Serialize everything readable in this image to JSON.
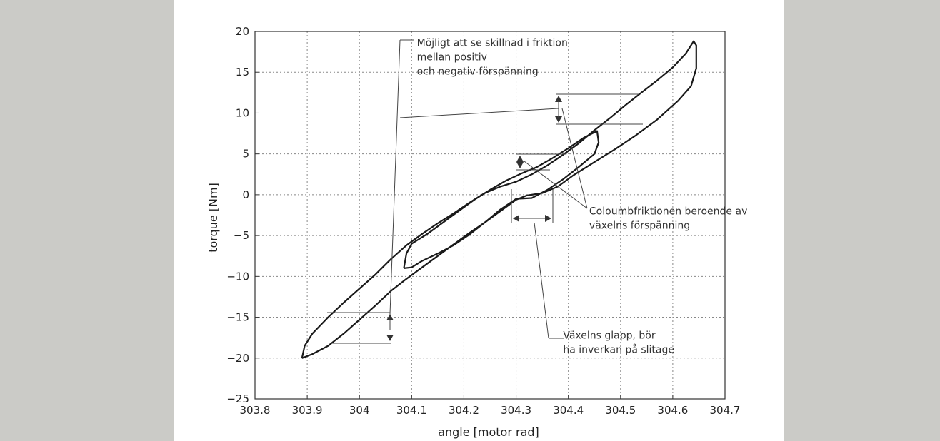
{
  "chart_data": {
    "type": "line",
    "title": "",
    "xlabel": "angle [motor rad]",
    "ylabel": "torque [Nm]",
    "xlim": [
      303.8,
      304.7
    ],
    "ylim": [
      -25,
      20
    ],
    "x_ticks": [
      "303.8",
      "303.9",
      "304",
      "304.1",
      "304.2",
      "304.3",
      "304.4",
      "304.5",
      "304.6",
      "304.7"
    ],
    "y_ticks": [
      "20",
      "15",
      "10",
      "5",
      "0",
      "−5",
      "−10",
      "−15",
      "−20",
      "−25"
    ],
    "grid": true,
    "series": [
      {
        "loop": "outer",
        "points": [
          [
            303.89,
            -20.0
          ],
          [
            303.895,
            -18.5
          ],
          [
            303.91,
            -17.0
          ],
          [
            303.94,
            -15.0
          ],
          [
            303.97,
            -13.2
          ],
          [
            304.0,
            -11.5
          ],
          [
            304.03,
            -9.8
          ],
          [
            304.06,
            -7.9
          ],
          [
            304.09,
            -6.2
          ],
          [
            304.12,
            -4.8
          ],
          [
            304.15,
            -3.5
          ],
          [
            304.18,
            -2.3
          ],
          [
            304.21,
            -1.0
          ],
          [
            304.24,
            0.2
          ],
          [
            304.27,
            1.0
          ],
          [
            304.3,
            1.6
          ],
          [
            304.33,
            2.5
          ],
          [
            304.36,
            3.6
          ],
          [
            304.39,
            4.9
          ],
          [
            304.42,
            6.3
          ],
          [
            304.45,
            7.9
          ],
          [
            304.48,
            9.4
          ],
          [
            304.51,
            11.0
          ],
          [
            304.54,
            12.5
          ],
          [
            304.57,
            14.0
          ],
          [
            304.6,
            15.6
          ],
          [
            304.625,
            17.3
          ],
          [
            304.64,
            18.8
          ],
          [
            304.645,
            18.3
          ],
          [
            304.645,
            15.5
          ],
          [
            304.635,
            13.3
          ],
          [
            304.61,
            11.5
          ],
          [
            304.57,
            9.2
          ],
          [
            304.53,
            7.3
          ],
          [
            304.49,
            5.6
          ],
          [
            304.45,
            4.0
          ],
          [
            304.41,
            2.4
          ],
          [
            304.38,
            1.0
          ],
          [
            304.35,
            0.2
          ],
          [
            304.32,
            -0.1
          ],
          [
            304.3,
            -0.6
          ],
          [
            304.27,
            -2.0
          ],
          [
            304.24,
            -3.4
          ],
          [
            304.21,
            -4.7
          ],
          [
            304.18,
            -6.1
          ],
          [
            304.15,
            -7.5
          ],
          [
            304.12,
            -8.9
          ],
          [
            304.09,
            -10.3
          ],
          [
            304.06,
            -11.8
          ],
          [
            304.03,
            -13.6
          ],
          [
            304.0,
            -15.3
          ],
          [
            303.97,
            -17.0
          ],
          [
            303.94,
            -18.5
          ],
          [
            303.91,
            -19.5
          ],
          [
            303.89,
            -20.0
          ]
        ]
      },
      {
        "loop": "inner",
        "points": [
          [
            304.085,
            -9.0
          ],
          [
            304.09,
            -7.2
          ],
          [
            304.1,
            -6.0
          ],
          [
            304.13,
            -4.8
          ],
          [
            304.16,
            -3.4
          ],
          [
            304.19,
            -2.0
          ],
          [
            304.22,
            -0.6
          ],
          [
            304.25,
            0.6
          ],
          [
            304.28,
            1.7
          ],
          [
            304.31,
            2.6
          ],
          [
            304.34,
            3.4
          ],
          [
            304.37,
            4.5
          ],
          [
            304.4,
            5.7
          ],
          [
            304.43,
            7.0
          ],
          [
            304.455,
            7.8
          ],
          [
            304.458,
            6.4
          ],
          [
            304.45,
            5.0
          ],
          [
            304.42,
            3.4
          ],
          [
            304.39,
            1.9
          ],
          [
            304.36,
            0.6
          ],
          [
            304.33,
            -0.4
          ],
          [
            304.3,
            -0.5
          ],
          [
            304.27,
            -1.8
          ],
          [
            304.24,
            -3.4
          ],
          [
            304.21,
            -4.9
          ],
          [
            304.18,
            -6.2
          ],
          [
            304.15,
            -7.2
          ],
          [
            304.12,
            -8.1
          ],
          [
            304.1,
            -8.9
          ],
          [
            304.085,
            -9.0
          ]
        ]
      }
    ],
    "annotations": [
      {
        "lines": [
          "Möjligt att se skillnad i friktion",
          "mellan positiv",
          "och negativ förspänning"
        ],
        "text_at": [
          304.11,
          18.2
        ]
      },
      {
        "lines": [
          "Coloumbfriktionen beroende av",
          "växelns förspänning"
        ],
        "text_at": [
          304.44,
          -2.4
        ]
      },
      {
        "lines": [
          "Växelns glapp, bör",
          "ha inverkan på slitage"
        ],
        "text_at": [
          304.39,
          -17.6
        ]
      }
    ]
  }
}
